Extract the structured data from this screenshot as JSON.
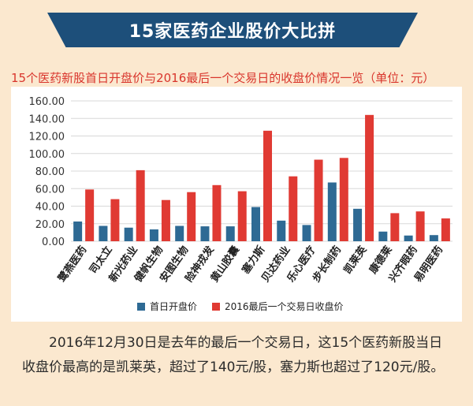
{
  "banner": {
    "title": "15家医药企业股价大比拼"
  },
  "subtitle": "15个医药新股首日开盘价与2016最后一个交易日的收盘价情况一览（单位：元）",
  "chart_data": {
    "type": "bar",
    "title": "15个医药新股首日开盘价与2016最后一个交易日的收盘价情况一览（单位：元）",
    "categories": [
      "鹭燕医药",
      "司太立",
      "新光药业",
      "健帆生物",
      "安图生物",
      "险神戎发",
      "黄山胶囊",
      "塞力斯",
      "贝达药业",
      "乐心医疗",
      "步长制药",
      "凯莱英",
      "康德莱",
      "兴齐眼药",
      "易明医药"
    ],
    "series": [
      {
        "name": "首日开盘价",
        "color": "#2e6a94",
        "values": [
          22.5,
          17.5,
          15.5,
          13.5,
          17.5,
          17.0,
          17.0,
          39.0,
          23.5,
          18.5,
          67.0,
          37.0,
          11.0,
          6.5,
          7.0
        ]
      },
      {
        "name": "2016最后一个交易日收盘价",
        "color": "#e03a33",
        "values": [
          59.0,
          48.0,
          81.0,
          47.0,
          56.0,
          64.0,
          57.0,
          126.0,
          74.0,
          93.0,
          95.0,
          144.0,
          32.0,
          34.0,
          26.0
        ]
      }
    ],
    "y_ticks": [
      "0.00",
      "20.00",
      "40.00",
      "60.00",
      "80.00",
      "100.00",
      "120.00",
      "140.00",
      "160.00"
    ],
    "ylim": [
      0,
      160
    ],
    "grid": true,
    "legend_placement": "bottom"
  },
  "description": "2016年12月30日是去年的最后一个交易日，这15个医药新股当日收盘价最高的是凯莱英，超过了140元/股，塞力斯也超过了120元/股。"
}
